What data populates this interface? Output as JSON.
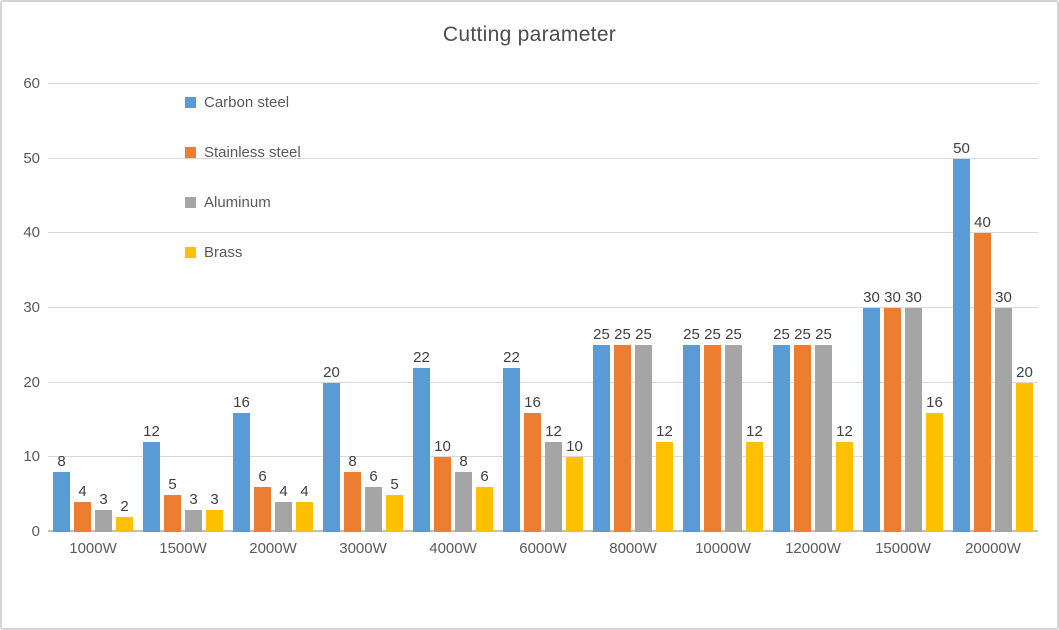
{
  "chart_data": {
    "type": "bar",
    "title": "Cutting parameter",
    "categories": [
      "1000W",
      "1500W",
      "2000W",
      "3000W",
      "4000W",
      "6000W",
      "8000W",
      "10000W",
      "12000W",
      "15000W",
      "20000W"
    ],
    "series": [
      {
        "name": "Carbon steel",
        "color": "#5B9BD5",
        "values": [
          8,
          12,
          16,
          20,
          22,
          22,
          25,
          25,
          25,
          30,
          50
        ]
      },
      {
        "name": "Stainless steel",
        "color": "#ED7D31",
        "values": [
          4,
          5,
          6,
          8,
          10,
          16,
          25,
          25,
          25,
          30,
          40
        ]
      },
      {
        "name": "Aluminum",
        "color": "#A5A5A5",
        "values": [
          3,
          3,
          4,
          6,
          8,
          12,
          25,
          25,
          25,
          30,
          30
        ]
      },
      {
        "name": "Brass",
        "color": "#FFC000",
        "values": [
          2,
          3,
          4,
          5,
          6,
          10,
          12,
          12,
          12,
          16,
          20
        ]
      }
    ],
    "xlabel": "",
    "ylabel": "",
    "ylim": [
      0,
      60
    ],
    "yticks": [
      0,
      10,
      20,
      30,
      40,
      50,
      60
    ],
    "grid": true,
    "data_labels": true,
    "legend_position": "upper-left-inside",
    "style": {
      "gridline_color": "#D9D9D9",
      "axis_line_color": "#C0C0C0",
      "tick_text_color": "#595959",
      "data_label_color": "#404040",
      "title_color": "#4D4D4D",
      "background": "#FFFFFF",
      "border_color": "#D5D5D5"
    }
  }
}
